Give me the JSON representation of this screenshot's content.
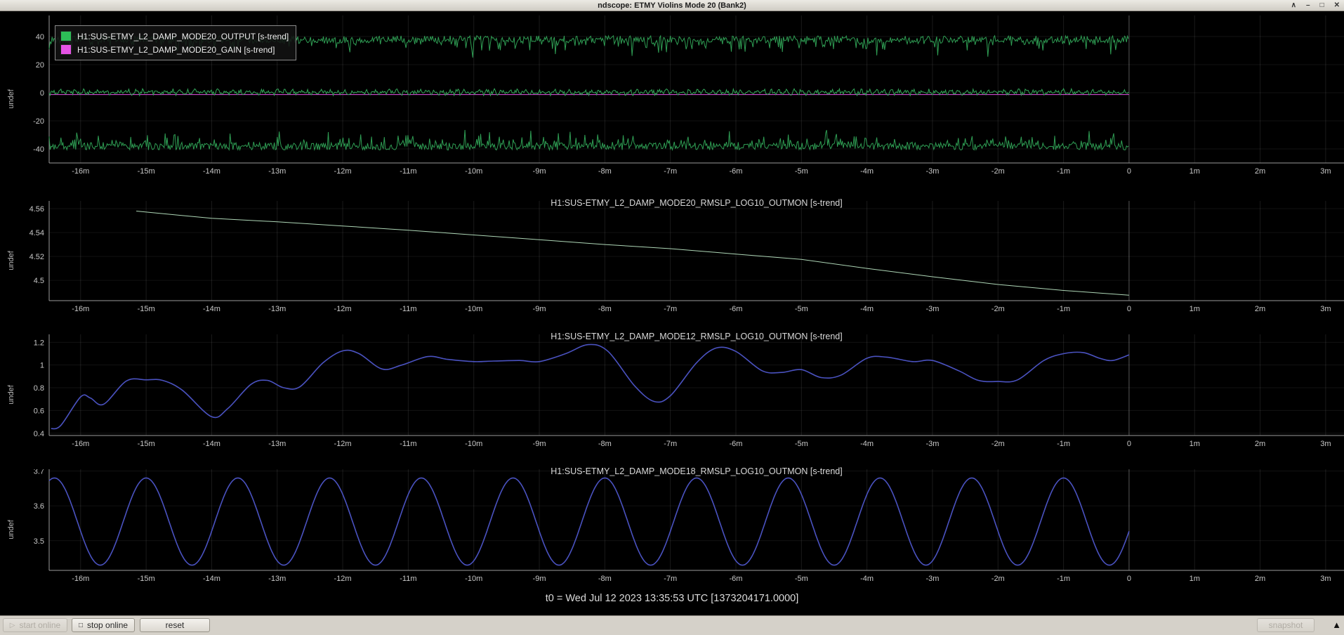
{
  "window": {
    "title": "ndscope: ETMY Violins Mode 20 (Bank2)",
    "controls": {
      "shade": "∧",
      "minimize": "–",
      "maximize": "□",
      "close": "✕"
    }
  },
  "legend": {
    "items": [
      {
        "label": "H1:SUS-ETMY_L2_DAMP_MODE20_OUTPUT [s-trend]",
        "color": "#2dbe57"
      },
      {
        "label": "H1:SUS-ETMY_L2_DAMP_MODE20_GAIN [s-trend]",
        "color": "#e553e5"
      }
    ]
  },
  "footer": {
    "t0": "t0 = Wed Jul 12 2023 13:35:53 UTC [1373204171.0000]"
  },
  "toolbar": {
    "start_online": "start online",
    "stop_online": "stop online",
    "reset": "reset",
    "snapshot": "snapshot",
    "icons": {
      "play": "▷",
      "stop": "□",
      "expand": "▲"
    }
  },
  "chart_data": [
    {
      "type": "line",
      "title": "",
      "ylabel": "undef",
      "xlim": [
        -16.48,
        3.28
      ],
      "ylim": [
        -50,
        55
      ],
      "x_data_end": 0,
      "xtick_vals": [
        -16,
        -15,
        -14,
        -13,
        -12,
        -11,
        -10,
        -9,
        -8,
        -7,
        -6,
        -5,
        -4,
        -3,
        -2,
        -1,
        0,
        1,
        2,
        3
      ],
      "xtick_labels": [
        "-16m",
        "-15m",
        "-14m",
        "-13m",
        "-12m",
        "-11m",
        "-10m",
        "-9m",
        "-8m",
        "-7m",
        "-6m",
        "-5m",
        "-4m",
        "-3m",
        "-2m",
        "-1m",
        "0",
        "1m",
        "2m",
        "3m"
      ],
      "ytick_vals": [
        40,
        20,
        0,
        -20,
        -40
      ],
      "ytick_labels": [
        "40",
        "20",
        "0",
        "-20",
        "-40"
      ],
      "seed": 1373204171,
      "series": [
        {
          "name": "H1:SUS-ETMY_L2_DAMP_MODE20_GAIN",
          "style": "const",
          "color": "#e553e5",
          "value": -1.3
        },
        {
          "name": "OUTPUT s-trend max",
          "style": "noise",
          "color": "#2f9e54",
          "base": 38,
          "jitter": 2.6,
          "spike": -12,
          "spike_prob": 0.3,
          "approx_range": [
            25,
            40
          ]
        },
        {
          "name": "OUTPUT s-trend mean",
          "style": "noise",
          "color": "#34a85a",
          "base": 0.4,
          "jitter": 1.5,
          "wiggle": 1.0,
          "spike": 0,
          "spike_prob": 0,
          "approx_range": [
            -2,
            2
          ]
        },
        {
          "name": "OUTPUT s-trend min",
          "style": "noise",
          "color": "#2f9e54",
          "base": -38.2,
          "jitter": 2.6,
          "spike": 12,
          "spike_prob": 0.3,
          "approx_range": [
            -40,
            -25
          ]
        }
      ]
    },
    {
      "type": "line",
      "title": "H1:SUS-ETMY_L2_DAMP_MODE20_RMSLP_LOG10_OUTMON [s-trend]",
      "ylabel": "undef",
      "xlim": [
        -16.48,
        3.28
      ],
      "ylim": [
        4.483,
        4.5665
      ],
      "x_data_end": 0,
      "xtick_vals": [
        -16,
        -15,
        -14,
        -13,
        -12,
        -11,
        -10,
        -9,
        -8,
        -7,
        -6,
        -5,
        -4,
        -3,
        -2,
        -1,
        0,
        1,
        2,
        3
      ],
      "xtick_labels": [
        "-16m",
        "-15m",
        "-14m",
        "-13m",
        "-12m",
        "-11m",
        "-10m",
        "-9m",
        "-8m",
        "-7m",
        "-6m",
        "-5m",
        "-4m",
        "-3m",
        "-2m",
        "-1m",
        "0",
        "1m",
        "2m",
        "3m"
      ],
      "ytick_vals": [
        4.56,
        4.54,
        4.52,
        4.5
      ],
      "ytick_labels": [
        "4.56",
        "4.54",
        "4.52",
        "4.5"
      ],
      "series": [
        {
          "name": "H1:SUS-ETMY_L2_DAMP_MODE20_RMSLP_LOG10_OUTMON",
          "style": "line",
          "color": "#aed6b6",
          "points": [
            [
              -15.15,
              4.558
            ],
            [
              -14.5,
              4.5545
            ],
            [
              -14,
              4.552
            ],
            [
              -13,
              4.549
            ],
            [
              -12,
              4.5455
            ],
            [
              -11,
              4.542
            ],
            [
              -10,
              4.538
            ],
            [
              -9,
              4.534
            ],
            [
              -8,
              4.53
            ],
            [
              -7,
              4.5265
            ],
            [
              -6,
              4.522
            ],
            [
              -5,
              4.5175
            ],
            [
              -4,
              4.51
            ],
            [
              -3,
              4.503
            ],
            [
              -2,
              4.4965
            ],
            [
              -1,
              4.4915
            ],
            [
              0,
              4.4875
            ]
          ]
        }
      ]
    },
    {
      "type": "line",
      "title": "H1:SUS-ETMY_L2_DAMP_MODE12_RMSLP_LOG10_OUTMON [s-trend]",
      "ylabel": "undef",
      "xlim": [
        -16.48,
        3.28
      ],
      "ylim": [
        0.38,
        1.27
      ],
      "x_data_end": 0,
      "xtick_vals": [
        -16,
        -15,
        -14,
        -13,
        -12,
        -11,
        -10,
        -9,
        -8,
        -7,
        -6,
        -5,
        -4,
        -3,
        -2,
        -1,
        0,
        1,
        2,
        3
      ],
      "xtick_labels": [
        "-16m",
        "-15m",
        "-14m",
        "-13m",
        "-12m",
        "-11m",
        "-10m",
        "-9m",
        "-8m",
        "-7m",
        "-6m",
        "-5m",
        "-4m",
        "-3m",
        "-2m",
        "-1m",
        "0",
        "1m",
        "2m",
        "3m"
      ],
      "ytick_vals": [
        1.2,
        1,
        0.8,
        0.6,
        0.4
      ],
      "ytick_labels": [
        "1.2",
        "1",
        "0.8",
        "0.6",
        "0.4"
      ],
      "series": [
        {
          "name": "H1:SUS-ETMY_L2_DAMP_MODE12_RMSLP_LOG10_OUTMON",
          "style": "smooth",
          "color": "#4a52c0",
          "points": [
            [
              -16.45,
              0.44
            ],
            [
              -16.3,
              0.47
            ],
            [
              -16.0,
              0.72
            ],
            [
              -15.85,
              0.71
            ],
            [
              -15.65,
              0.655
            ],
            [
              -15.3,
              0.86
            ],
            [
              -15.0,
              0.87
            ],
            [
              -14.75,
              0.865
            ],
            [
              -14.45,
              0.78
            ],
            [
              -14.0,
              0.545
            ],
            [
              -13.75,
              0.62
            ],
            [
              -13.4,
              0.83
            ],
            [
              -13.15,
              0.865
            ],
            [
              -12.9,
              0.8
            ],
            [
              -12.65,
              0.81
            ],
            [
              -12.3,
              1.02
            ],
            [
              -12.0,
              1.125
            ],
            [
              -11.75,
              1.1
            ],
            [
              -11.4,
              0.965
            ],
            [
              -11.1,
              1.0
            ],
            [
              -10.7,
              1.075
            ],
            [
              -10.4,
              1.05
            ],
            [
              -10.0,
              1.03
            ],
            [
              -9.7,
              1.035
            ],
            [
              -9.3,
              1.04
            ],
            [
              -9.0,
              1.03
            ],
            [
              -8.6,
              1.1
            ],
            [
              -8.25,
              1.18
            ],
            [
              -7.95,
              1.12
            ],
            [
              -7.55,
              0.82
            ],
            [
              -7.25,
              0.68
            ],
            [
              -7.0,
              0.73
            ],
            [
              -6.6,
              1.02
            ],
            [
              -6.3,
              1.15
            ],
            [
              -6.0,
              1.12
            ],
            [
              -5.6,
              0.95
            ],
            [
              -5.3,
              0.935
            ],
            [
              -5.0,
              0.96
            ],
            [
              -4.7,
              0.89
            ],
            [
              -4.4,
              0.91
            ],
            [
              -4.0,
              1.06
            ],
            [
              -3.7,
              1.07
            ],
            [
              -3.3,
              1.03
            ],
            [
              -3.0,
              1.04
            ],
            [
              -2.6,
              0.95
            ],
            [
              -2.3,
              0.865
            ],
            [
              -2.0,
              0.855
            ],
            [
              -1.7,
              0.87
            ],
            [
              -1.3,
              1.04
            ],
            [
              -1.0,
              1.1
            ],
            [
              -0.7,
              1.11
            ],
            [
              -0.45,
              1.06
            ],
            [
              -0.25,
              1.04
            ],
            [
              0,
              1.09
            ]
          ]
        }
      ]
    },
    {
      "type": "line",
      "title": "H1:SUS-ETMY_L2_DAMP_MODE18_RMSLP_LOG10_OUTMON [s-trend]",
      "ylabel": "undef",
      "xlim": [
        -16.48,
        3.28
      ],
      "ylim": [
        3.415,
        3.705
      ],
      "x_data_end": 0,
      "xtick_vals": [
        -16,
        -15,
        -14,
        -13,
        -12,
        -11,
        -10,
        -9,
        -8,
        -7,
        -6,
        -5,
        -4,
        -3,
        -2,
        -1,
        0,
        1,
        2,
        3
      ],
      "xtick_labels": [
        "-16m",
        "-15m",
        "-14m",
        "-13m",
        "-12m",
        "-11m",
        "-10m",
        "-9m",
        "-8m",
        "-7m",
        "-6m",
        "-5m",
        "-4m",
        "-3m",
        "-2m",
        "-1m",
        "0",
        "1m",
        "2m",
        "3m"
      ],
      "ytick_vals": [
        3.7,
        3.6,
        3.5
      ],
      "ytick_labels": [
        "3.7",
        "3.6",
        "3.5"
      ],
      "series": [
        {
          "name": "H1:SUS-ETMY_L2_DAMP_MODE18_RMSLP_LOG10_OUTMON",
          "style": "sine",
          "color": "#4a52c0",
          "mean": 3.555,
          "amplitude": 0.125,
          "period_min": 1.4,
          "peak_at": -16.4,
          "observed_max": 3.68,
          "observed_min": 3.43
        }
      ]
    }
  ]
}
